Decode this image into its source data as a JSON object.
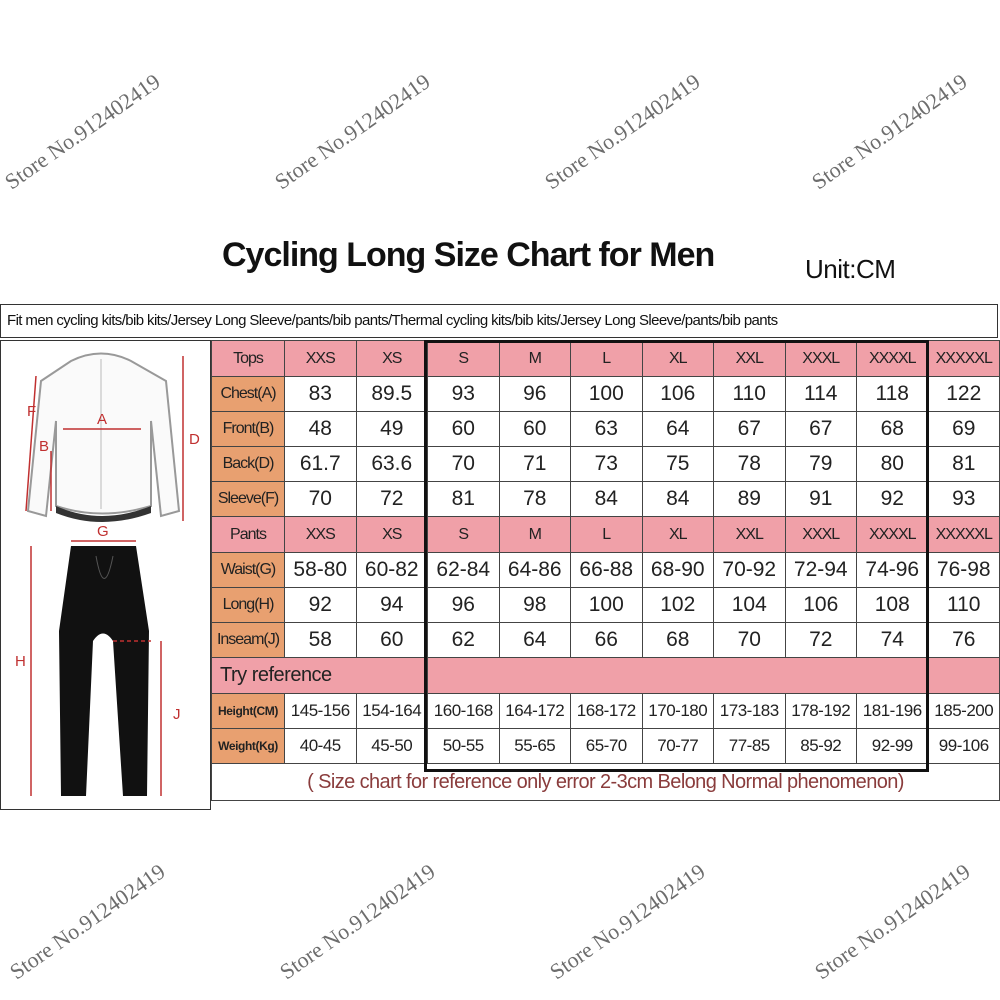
{
  "title": "Cycling Long Size Chart for Men",
  "unit": "Unit:CM",
  "subtitle": "Fit men cycling kits/bib kits/Jersey Long Sleeve/pants/bib pants/Thermal cycling kits/bib kits/Jersey Long Sleeve/pants/bib pants",
  "figure": {
    "labels": [
      "F",
      "B",
      "A",
      "D",
      "G",
      "H",
      "J"
    ]
  },
  "tops": {
    "header": [
      "Tops",
      "XXS",
      "XS",
      "S",
      "M",
      "L",
      "XL",
      "XXL",
      "XXXL",
      "XXXXL",
      "XXXXXL"
    ],
    "rows": [
      {
        "label": "Chest(A)",
        "values": [
          "83",
          "89.5",
          "93",
          "96",
          "100",
          "106",
          "110",
          "114",
          "118",
          "122"
        ]
      },
      {
        "label": "Front(B)",
        "values": [
          "48",
          "49",
          "60",
          "60",
          "63",
          "64",
          "67",
          "67",
          "68",
          "69"
        ]
      },
      {
        "label": "Back(D)",
        "values": [
          "61.7",
          "63.6",
          "70",
          "71",
          "73",
          "75",
          "78",
          "79",
          "80",
          "81"
        ]
      },
      {
        "label": "Sleeve(F)",
        "values": [
          "70",
          "72",
          "81",
          "78",
          "84",
          "84",
          "89",
          "91",
          "92",
          "93"
        ]
      }
    ]
  },
  "pants": {
    "header": [
      "Pants",
      "XXS",
      "XS",
      "S",
      "M",
      "L",
      "XL",
      "XXL",
      "XXXL",
      "XXXXL",
      "XXXXXL"
    ],
    "rows": [
      {
        "label": "Waist(G)",
        "values": [
          "58-80",
          "60-82",
          "62-84",
          "64-86",
          "66-88",
          "68-90",
          "70-92",
          "72-94",
          "74-96",
          "76-98"
        ]
      },
      {
        "label": "Long(H)",
        "values": [
          "92",
          "94",
          "96",
          "98",
          "100",
          "102",
          "104",
          "106",
          "108",
          "110"
        ]
      },
      {
        "label": "Inseam(J)",
        "values": [
          "58",
          "60",
          "62",
          "64",
          "66",
          "68",
          "70",
          "72",
          "74",
          "76"
        ]
      }
    ]
  },
  "reference": {
    "title": "Try reference",
    "rows": [
      {
        "label": "Height(CM)",
        "values": [
          "145-156",
          "154-164",
          "160-168",
          "164-172",
          "168-172",
          "170-180",
          "173-183",
          "178-192",
          "181-196",
          "185-200"
        ]
      },
      {
        "label": "Weight(Kg)",
        "values": [
          "40-45",
          "45-50",
          "50-55",
          "55-65",
          "65-70",
          "70-77",
          "77-85",
          "85-92",
          "92-99",
          "99-106"
        ]
      }
    ]
  },
  "note": "( Size chart for reference only  error 2-3cm  Belong Normal phenomenon)",
  "watermark": "Store No.912402419",
  "colors": {
    "header_pink": "#f0a0a8",
    "label_orange": "#e8a070",
    "note_text": "#8a3c3c"
  }
}
